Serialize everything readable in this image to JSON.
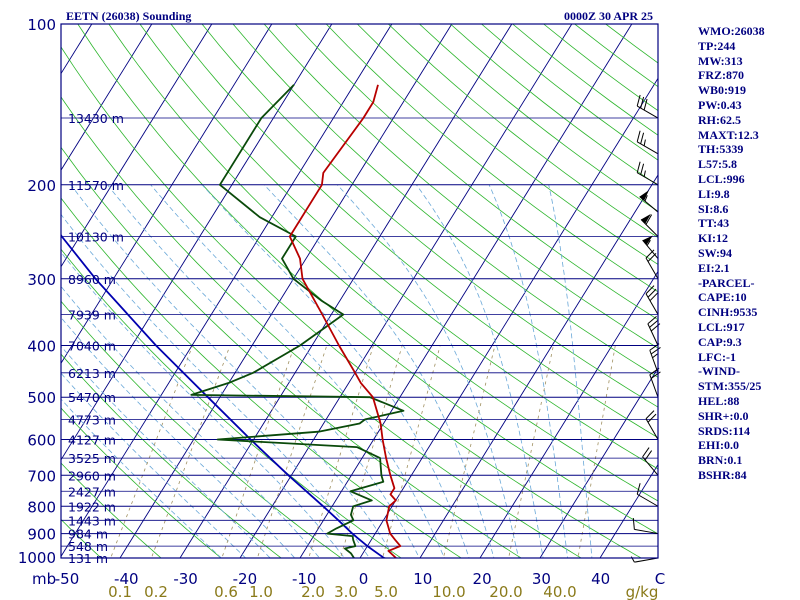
{
  "header": {
    "station": "EETN (26038) Sounding",
    "time": "0000Z 30 APR 25"
  },
  "indices": [
    "WMO:26038",
    "TP:244",
    "MW:313",
    "FRZ:870",
    "WB0:919",
    "PW:0.43",
    "RH:62.5",
    "MAXT:12.3",
    "TH:5339",
    "L57:5.8",
    "LCL:996",
    "LI:9.8",
    "SI:8.6",
    "TT:43",
    "KI:12",
    "SW:94",
    "EI:2.1",
    "-PARCEL-",
    "CAPE:10",
    "CINH:9535",
    "LCL:917",
    "CAP:9.3",
    "LFC:-1",
    "-WIND-",
    "STM:355/25",
    "HEL:88",
    "SHR+:0.0",
    "SRDS:114",
    "EHI:0.0",
    "BRN:0.1",
    "BSHR:84"
  ],
  "colors": {
    "frame": "#000080",
    "isobar": "#000080",
    "isotherm": "#000080",
    "dry_adiabat": "#2cb52c",
    "moist_adiabat": "#6aa8d8",
    "mixing_ratio": "#a09060",
    "temperature": "#b80000",
    "dewpoint": "#0a4a0a",
    "parcel": "#0000b0",
    "wind": "#000000"
  },
  "chart_data": {
    "type": "skew-t",
    "pressure_axis": {
      "unit_label": "mb",
      "ticks": [
        100,
        200,
        300,
        400,
        500,
        600,
        700,
        800,
        900,
        1000
      ],
      "range": [
        100,
        1000
      ],
      "scale": "log"
    },
    "temperature_axis": {
      "ticks": [
        "-50",
        "-40",
        "-30",
        "-20",
        "-10",
        "0",
        "10",
        "20",
        "30",
        "40",
        "C"
      ],
      "range": [
        -50,
        50
      ]
    },
    "mixing_ratio_axis": {
      "unit_label": "g/kg",
      "ticks": [
        "0.1",
        "0.2",
        "0.6",
        "1.0",
        "2.0",
        "3.0",
        "5.0",
        "10.0",
        "20.0",
        "40.0"
      ]
    },
    "heights": [
      {
        "p": 150,
        "label": "13430 m"
      },
      {
        "p": 200,
        "label": "11570 m"
      },
      {
        "p": 250,
        "label": "10130 m"
      },
      {
        "p": 300,
        "label": "8960 m"
      },
      {
        "p": 350,
        "label": "7939 m"
      },
      {
        "p": 400,
        "label": "7040 m"
      },
      {
        "p": 450,
        "label": "6213 m"
      },
      {
        "p": 500,
        "label": "5470 m"
      },
      {
        "p": 550,
        "label": "4773 m"
      },
      {
        "p": 600,
        "label": "4127 m"
      },
      {
        "p": 650,
        "label": "3525 m"
      },
      {
        "p": 700,
        "label": "2960 m"
      },
      {
        "p": 750,
        "label": "2427 m"
      },
      {
        "p": 800,
        "label": "1922 m"
      },
      {
        "p": 850,
        "label": "1443 m"
      },
      {
        "p": 900,
        "label": "984 m"
      },
      {
        "p": 950,
        "label": "548 m"
      },
      {
        "p": 1000,
        "label": "131 m"
      }
    ],
    "temperature": [
      [
        1012,
        5.3
      ],
      [
        1000,
        6
      ],
      [
        970,
        4
      ],
      [
        950,
        5.5
      ],
      [
        925,
        4
      ],
      [
        900,
        2.5
      ],
      [
        850,
        0.5
      ],
      [
        800,
        -0.5
      ],
      [
        780,
        0
      ],
      [
        760,
        -1.5
      ],
      [
        740,
        -1.5
      ],
      [
        700,
        -3.5
      ],
      [
        650,
        -6
      ],
      [
        600,
        -8.5
      ],
      [
        560,
        -10.5
      ],
      [
        500,
        -14.5
      ],
      [
        470,
        -18
      ],
      [
        450,
        -20
      ],
      [
        400,
        -25.5
      ],
      [
        350,
        -31.5
      ],
      [
        300,
        -38.5
      ],
      [
        275,
        -41
      ],
      [
        250,
        -45
      ],
      [
        200,
        -45
      ],
      [
        190,
        -46
      ],
      [
        150,
        -45
      ],
      [
        140,
        -45
      ],
      [
        130,
        -46
      ]
    ],
    "dewpoint": [
      [
        1012,
        0
      ],
      [
        1000,
        -1
      ],
      [
        980,
        -2
      ],
      [
        960,
        -3.5
      ],
      [
        950,
        -2
      ],
      [
        925,
        -3
      ],
      [
        910,
        -3.5
      ],
      [
        900,
        -8
      ],
      [
        880,
        -7
      ],
      [
        850,
        -5
      ],
      [
        830,
        -6
      ],
      [
        800,
        -6.5
      ],
      [
        780,
        -4
      ],
      [
        750,
        -8.5
      ],
      [
        720,
        -4
      ],
      [
        700,
        -5
      ],
      [
        650,
        -7
      ],
      [
        620,
        -12
      ],
      [
        600,
        -36
      ],
      [
        580,
        -20
      ],
      [
        560,
        -14
      ],
      [
        550,
        -13.5
      ],
      [
        530,
        -8
      ],
      [
        500,
        -15
      ],
      [
        495,
        -45
      ],
      [
        470,
        -40
      ],
      [
        450,
        -37
      ],
      [
        400,
        -32
      ],
      [
        350,
        -28
      ],
      [
        330,
        -33
      ],
      [
        300,
        -40
      ],
      [
        275,
        -44
      ],
      [
        250,
        -44
      ],
      [
        230,
        -52
      ],
      [
        200,
        -62
      ],
      [
        150,
        -62
      ],
      [
        130,
        -60
      ]
    ],
    "parcel": [
      [
        1012,
        6
      ],
      [
        1000,
        4
      ],
      [
        950,
        0
      ],
      [
        917,
        -2.5
      ],
      [
        900,
        -3.8
      ],
      [
        850,
        -7.5
      ],
      [
        800,
        -11.5
      ],
      [
        700,
        -20.5
      ],
      [
        600,
        -30.5
      ],
      [
        500,
        -42
      ],
      [
        400,
        -56
      ],
      [
        300,
        -73
      ],
      [
        250,
        -83
      ],
      [
        200,
        -94
      ],
      [
        150,
        -107
      ],
      [
        110,
        -120
      ]
    ],
    "wind_barbs": [
      {
        "p": 150,
        "dir": 300,
        "spd": 30
      },
      {
        "p": 175,
        "dir": 300,
        "spd": 25
      },
      {
        "p": 200,
        "dir": 300,
        "spd": 25
      },
      {
        "p": 225,
        "dir": 310,
        "spd": 55
      },
      {
        "p": 250,
        "dir": 315,
        "spd": 60
      },
      {
        "p": 275,
        "dir": 320,
        "spd": 55
      },
      {
        "p": 300,
        "dir": 330,
        "spd": 20
      },
      {
        "p": 350,
        "dir": 330,
        "spd": 30
      },
      {
        "p": 400,
        "dir": 335,
        "spd": 30
      },
      {
        "p": 450,
        "dir": 340,
        "spd": 25
      },
      {
        "p": 500,
        "dir": 340,
        "spd": 20
      },
      {
        "p": 600,
        "dir": 330,
        "spd": 20
      },
      {
        "p": 700,
        "dir": 320,
        "spd": 20
      },
      {
        "p": 800,
        "dir": 300,
        "spd": 10
      },
      {
        "p": 900,
        "dir": 280,
        "spd": 10
      },
      {
        "p": 1000,
        "dir": 260,
        "spd": 5
      }
    ]
  }
}
